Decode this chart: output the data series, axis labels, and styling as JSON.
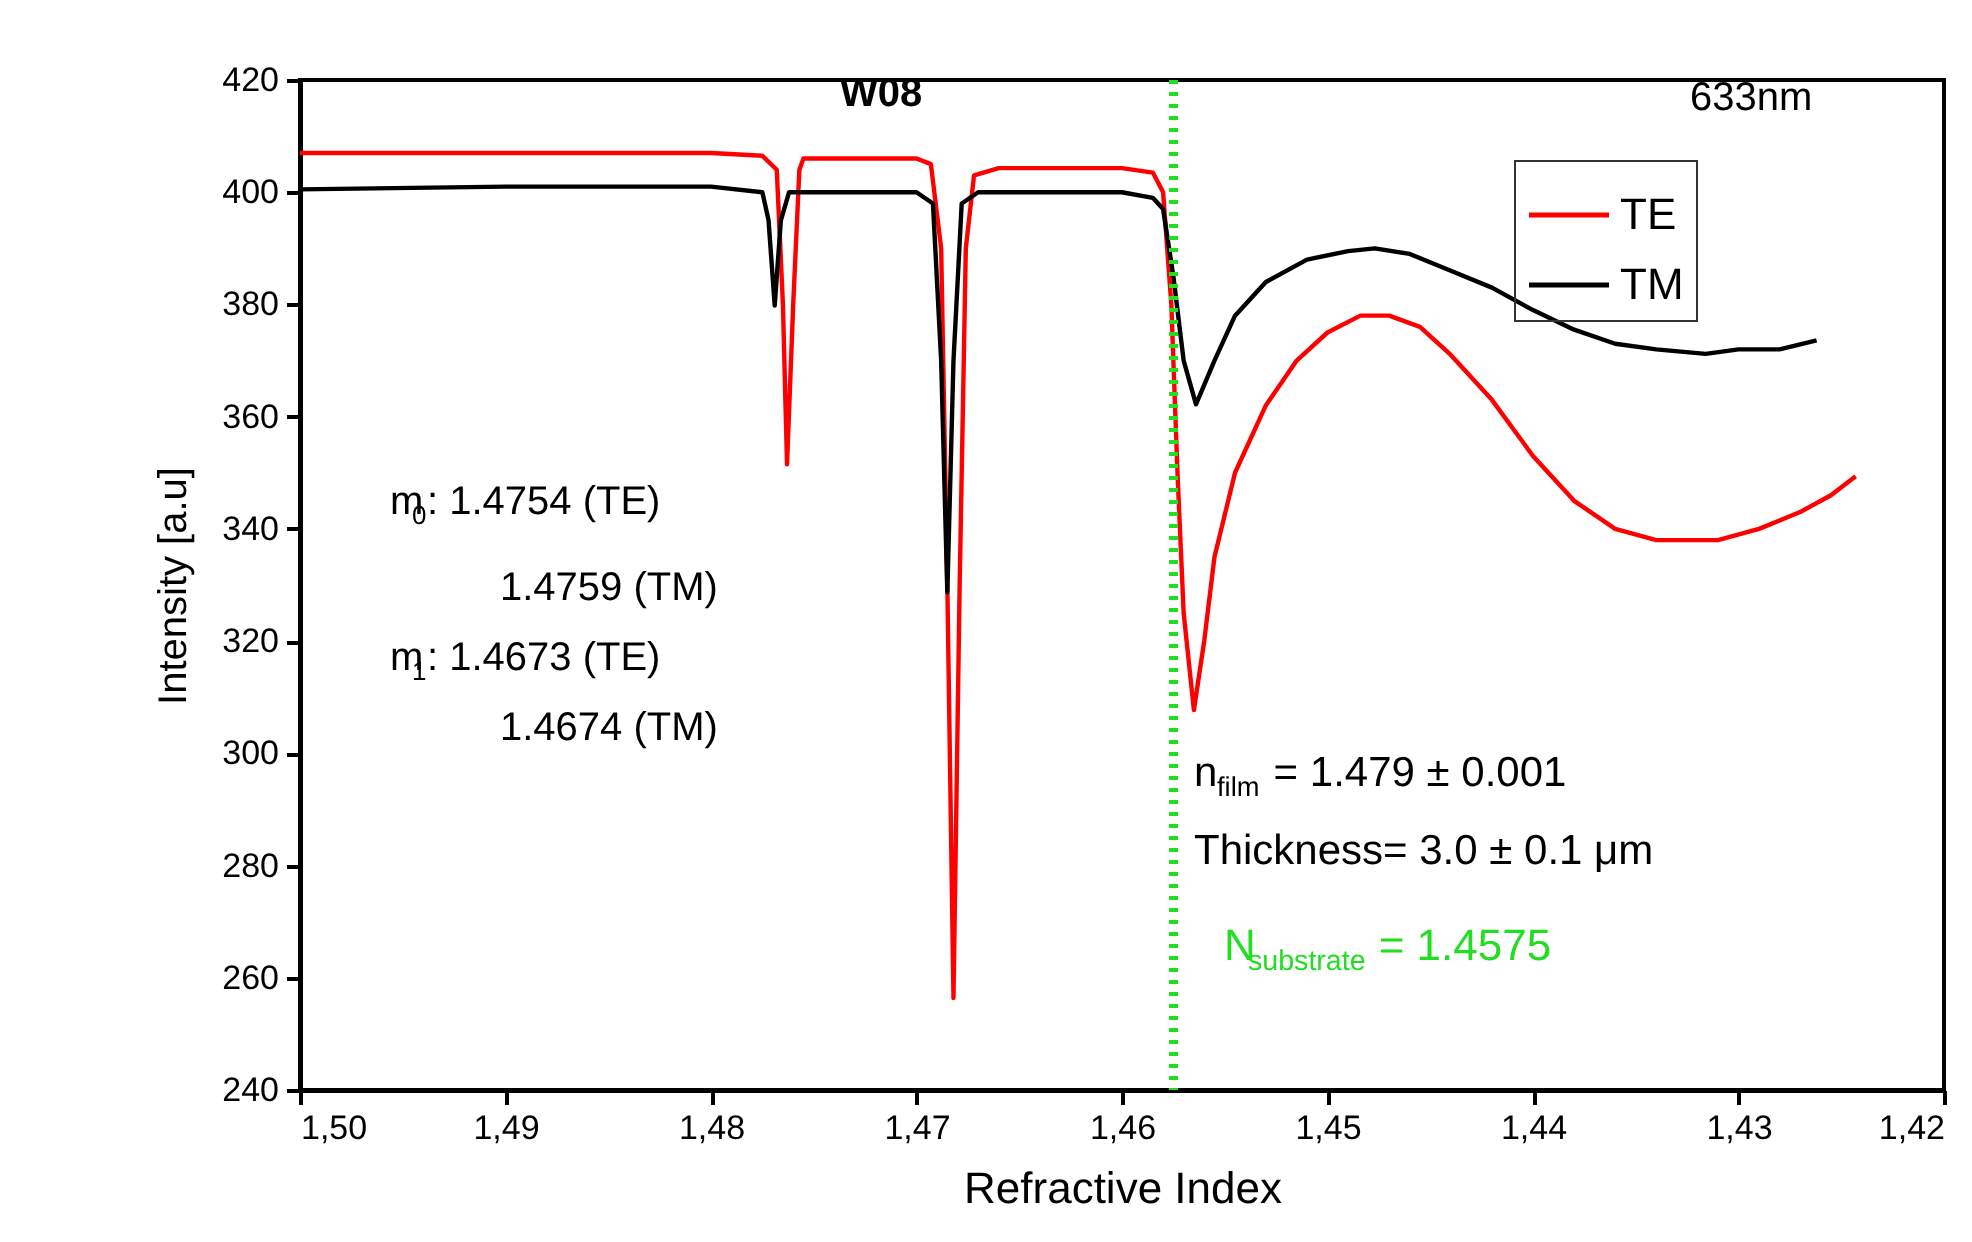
{
  "chart_data": {
    "type": "line",
    "xlabel": "Refractive Index",
    "ylabel": "Intensity [a.u]",
    "xlim": [
      1.5,
      1.42
    ],
    "ylim": [
      240,
      420
    ],
    "xticks": [
      {
        "value": 1.5,
        "label": "1,50"
      },
      {
        "value": 1.49,
        "label": "1,49"
      },
      {
        "value": 1.48,
        "label": "1,48"
      },
      {
        "value": 1.47,
        "label": "1,47"
      },
      {
        "value": 1.46,
        "label": "1,46"
      },
      {
        "value": 1.45,
        "label": "1,45"
      },
      {
        "value": 1.44,
        "label": "1,44"
      },
      {
        "value": 1.43,
        "label": "1,43"
      },
      {
        "value": 1.42,
        "label": "1,42"
      }
    ],
    "yticks": [
      240,
      260,
      280,
      300,
      320,
      340,
      360,
      380,
      400,
      420
    ],
    "grid": false,
    "legend": "top right",
    "line_style": "solid",
    "marker": "none",
    "series": [
      {
        "name": "TE",
        "color": "#ff0000",
        "x": [
          1.5,
          1.49,
          1.48,
          1.4775,
          1.4768,
          1.4765,
          1.4763,
          1.476,
          1.4757,
          1.4755,
          1.473,
          1.47,
          1.4693,
          1.4688,
          1.4685,
          1.4682,
          1.4679,
          1.4676,
          1.4672,
          1.466,
          1.46,
          1.4585,
          1.458,
          1.4576,
          1.4573,
          1.457,
          1.4565,
          1.456,
          1.4555,
          1.4545,
          1.453,
          1.4515,
          1.45,
          1.4484,
          1.447,
          1.4455,
          1.444,
          1.442,
          1.44,
          1.438,
          1.436,
          1.434,
          1.4326,
          1.431,
          1.429,
          1.427,
          1.4255,
          1.4243
        ],
        "values": [
          407,
          407,
          407,
          406.5,
          404,
          380,
          351.5,
          380,
          404,
          406,
          406,
          406,
          405,
          390,
          330,
          256.4,
          330,
          390,
          403,
          404.3,
          404.3,
          403.5,
          400,
          380,
          350,
          325,
          307.7,
          320,
          335,
          350,
          362,
          370,
          375,
          378,
          378,
          376,
          371,
          363,
          353,
          345,
          340,
          338,
          338,
          338,
          340,
          343,
          346,
          349.4
        ]
      },
      {
        "name": "TM",
        "color": "#000000",
        "x": [
          1.5,
          1.49,
          1.48,
          1.4775,
          1.4772,
          1.4769,
          1.4766,
          1.4762,
          1.472,
          1.47,
          1.4692,
          1.4688,
          1.4685,
          1.4682,
          1.4678,
          1.467,
          1.46,
          1.4585,
          1.458,
          1.4575,
          1.457,
          1.4564,
          1.4555,
          1.4545,
          1.453,
          1.451,
          1.449,
          1.4477,
          1.446,
          1.444,
          1.442,
          1.44,
          1.438,
          1.436,
          1.434,
          1.4316,
          1.43,
          1.428,
          1.4262
        ],
        "values": [
          400.5,
          401,
          401,
          400,
          395,
          379.8,
          395,
          400,
          400,
          400,
          398,
          370,
          328.7,
          370,
          398,
          400,
          400,
          399,
          397,
          385,
          370,
          362.2,
          370,
          378,
          384,
          388,
          389.5,
          390,
          389,
          386,
          383,
          379,
          375.5,
          373,
          372,
          371.2,
          372,
          372,
          373.6
        ]
      }
    ],
    "ref_lines": [
      {
        "axis": "x",
        "value": 1.4575,
        "label": "N$_{substrate}$ = 1.4575",
        "color": "#22dd22",
        "line_style": "dotted"
      }
    ],
    "annotations": [
      "W08",
      "633nm",
      "m$_{0}$: 1.4754 (TE)",
      "1.4759 (TM)",
      "m$_{1}$: 1.4673 (TE)",
      "1.4674 (TM)",
      "n$_{film}$= 1.479 ± 0.001",
      "Thickness= 3.0 ± 0.1 μm"
    ]
  }
}
